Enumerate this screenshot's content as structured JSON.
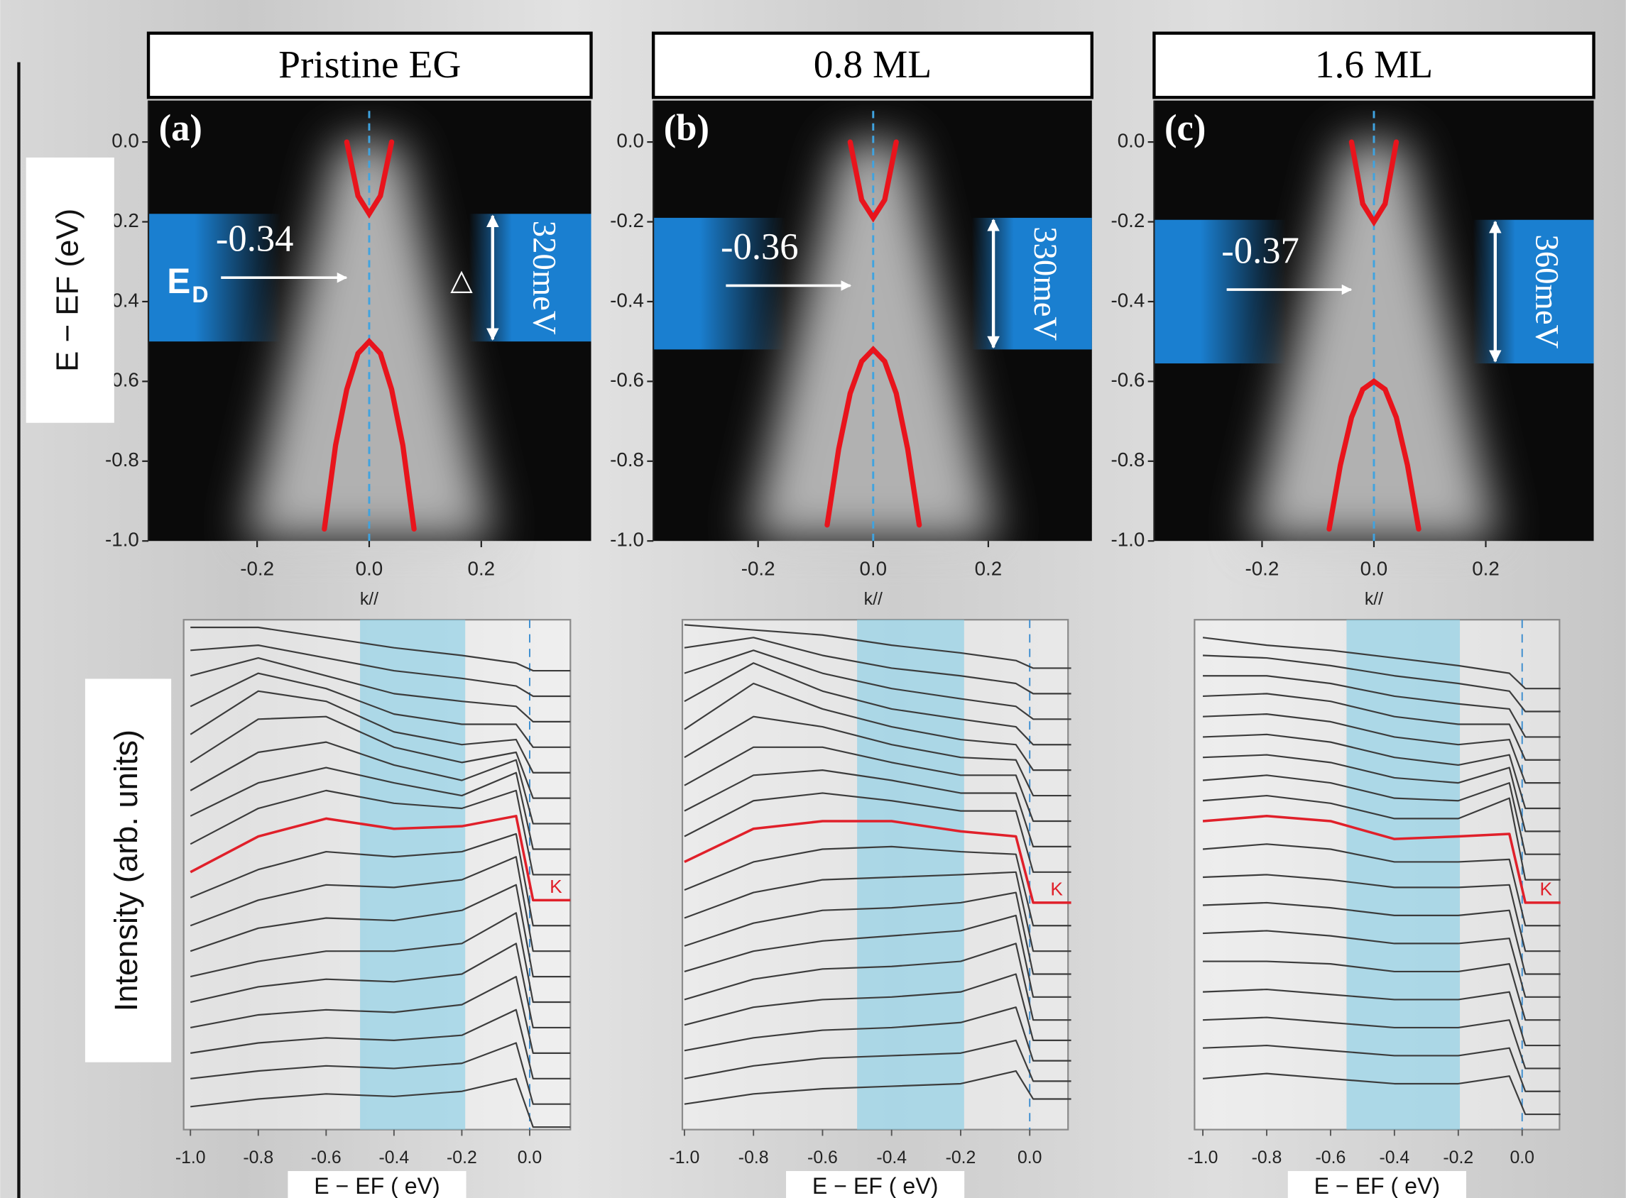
{
  "chart_data": [
    {
      "type": "band-map",
      "title": "Pristine EG",
      "panel_label": "(a)",
      "ylabel": "E − EF (eV)",
      "xlabel": "k//",
      "xlim": [
        -0.394,
        0.396
      ],
      "ylim": [
        -1.0,
        0.104
      ],
      "xticks": [
        -0.2,
        {
          "value": 0,
          "label": "0.0"
        },
        0.2
      ],
      "yticks": [
        {
          "value": 0,
          "label": "0.0"
        },
        -0.2,
        -0.4,
        -0.6,
        -0.8,
        {
          "value": -1,
          "label": "-1.0"
        }
      ],
      "gap_band": [
        -0.18,
        -0.5
      ],
      "gap": 320,
      "gap_label": "320meV",
      "dirac_point": -0.34,
      "dirac_label": "E",
      "dirac_subscript": "D",
      "delta": "△",
      "ref_line": 0,
      "series": [
        {
          "color": "#e8141c",
          "x": [
            -0.04,
            -0.02,
            0,
            0.02,
            0.04
          ],
          "values": [
            0.0,
            -0.135,
            -0.18,
            -0.135,
            0.0
          ]
        },
        {
          "color": "#e8141c",
          "x": [
            -0.08,
            -0.06,
            -0.04,
            -0.02,
            0,
            0.02,
            0.04,
            0.06,
            0.08
          ],
          "values": [
            -0.97,
            -0.76,
            -0.62,
            -0.53,
            -0.5,
            -0.53,
            -0.62,
            -0.76,
            -0.97
          ]
        }
      ]
    },
    {
      "type": "band-map",
      "title": "0.8 ML",
      "panel_label": "(b)",
      "xlabel": "k//",
      "xlim": [
        -0.382,
        0.38
      ],
      "ylim": [
        -1.0,
        0.104
      ],
      "xticks": [
        -0.2,
        {
          "value": 0,
          "label": "0.0"
        },
        0.2
      ],
      "yticks": [
        {
          "value": 0,
          "label": "0.0"
        },
        -0.2,
        -0.4,
        -0.6,
        -0.8,
        {
          "value": -1,
          "label": "-1.0"
        }
      ],
      "gap_band": [
        -0.19,
        -0.52
      ],
      "gap": 330,
      "gap_label": "330meV",
      "dirac_point": -0.36,
      "ref_line": 0,
      "series": [
        {
          "color": "#e8141c",
          "x": [
            -0.04,
            -0.02,
            0,
            0.02,
            0.04
          ],
          "values": [
            0.0,
            -0.145,
            -0.19,
            -0.145,
            0.0
          ]
        },
        {
          "color": "#e8141c",
          "x": [
            -0.08,
            -0.06,
            -0.04,
            -0.02,
            0,
            0.02,
            0.04,
            0.06,
            0.08
          ],
          "values": [
            -0.96,
            -0.77,
            -0.63,
            -0.55,
            -0.52,
            -0.55,
            -0.63,
            -0.77,
            -0.96
          ]
        }
      ]
    },
    {
      "type": "band-map",
      "title": "1.6 ML",
      "panel_label": "(c)",
      "xlabel": "k//",
      "xlim": [
        -0.393,
        0.393
      ],
      "ylim": [
        -1.0,
        0.104
      ],
      "xticks": [
        -0.2,
        {
          "value": 0,
          "label": "0.0"
        },
        0.2
      ],
      "yticks": [
        {
          "value": 0,
          "label": "0.0"
        },
        -0.2,
        -0.4,
        -0.6,
        -0.8,
        {
          "value": -1,
          "label": "-1.0"
        }
      ],
      "gap_band": [
        -0.195,
        -0.555
      ],
      "gap": 360,
      "gap_label": "360meV",
      "dirac_point": -0.37,
      "ref_line": 0,
      "series": [
        {
          "color": "#e8141c",
          "x": [
            -0.04,
            -0.02,
            0,
            0.02,
            0.04
          ],
          "values": [
            0.0,
            -0.155,
            -0.2,
            -0.155,
            0.0
          ]
        },
        {
          "color": "#e8141c",
          "x": [
            -0.08,
            -0.06,
            -0.04,
            -0.02,
            0,
            0.02,
            0.04,
            0.06,
            0.08
          ],
          "values": [
            -0.97,
            -0.81,
            -0.69,
            -0.62,
            -0.6,
            -0.62,
            -0.69,
            -0.81,
            -0.97
          ]
        }
      ]
    },
    {
      "type": "edc",
      "ylabel": "Intensity (arb. units)",
      "xlabel": "E − EF ( eV)",
      "marker_label": "K",
      "xlim": [
        -1.02,
        0.12
      ],
      "ylim": [
        0,
        20
      ],
      "xticks": [
        {
          "value": -1,
          "label": "-1.0"
        },
        -0.8,
        -0.6,
        -0.4,
        -0.2,
        {
          "value": 0,
          "label": "0.0"
        }
      ],
      "shade": [
        -0.5,
        -0.19
      ],
      "ref_line": 0,
      "x": [
        -1.0,
        -0.8,
        -0.6,
        -0.4,
        -0.2,
        -0.04,
        0.01,
        0.12
      ],
      "series": [
        {
          "color": "#3c3c3c",
          "values": [
            19.7,
            19.7,
            19.3,
            18.9,
            18.6,
            18.3,
            18.0,
            18.0
          ]
        },
        {
          "color": "#3c3c3c",
          "values": [
            18.8,
            19.0,
            18.5,
            18.0,
            17.7,
            17.4,
            17.0,
            17.0
          ]
        },
        {
          "color": "#3c3c3c",
          "values": [
            17.8,
            18.5,
            17.8,
            17.1,
            16.8,
            16.6,
            16.0,
            16.0
          ]
        },
        {
          "color": "#3c3c3c",
          "values": [
            16.6,
            17.9,
            17.3,
            16.3,
            15.9,
            15.9,
            15.0,
            15.0
          ]
        },
        {
          "color": "#3c3c3c",
          "values": [
            15.5,
            17.2,
            16.8,
            15.6,
            15.1,
            15.3,
            14.0,
            14.0
          ]
        },
        {
          "color": "#3c3c3c",
          "values": [
            14.4,
            16.1,
            16.2,
            15.0,
            14.4,
            14.8,
            13.0,
            13.0
          ]
        },
        {
          "color": "#3c3c3c",
          "values": [
            13.3,
            14.8,
            15.2,
            14.3,
            13.7,
            14.5,
            12.0,
            12.0
          ]
        },
        {
          "color": "#3c3c3c",
          "values": [
            12.3,
            13.6,
            14.2,
            13.6,
            13.1,
            14.0,
            11.0,
            11.0
          ]
        },
        {
          "color": "#3c3c3c",
          "values": [
            11.2,
            12.6,
            13.3,
            12.8,
            12.6,
            13.3,
            10.0,
            10.0
          ]
        },
        {
          "color": "#e0202a",
          "values": [
            10.1,
            11.5,
            12.2,
            11.8,
            11.9,
            12.3,
            9.0,
            9.0
          ]
        },
        {
          "color": "#3c3c3c",
          "values": [
            9.1,
            10.2,
            10.9,
            10.7,
            10.9,
            11.6,
            8.0,
            8.0
          ]
        },
        {
          "color": "#3c3c3c",
          "values": [
            8.0,
            9.0,
            9.6,
            9.5,
            9.8,
            10.7,
            7.0,
            7.0
          ]
        },
        {
          "color": "#3c3c3c",
          "values": [
            7.0,
            7.9,
            8.3,
            8.2,
            8.6,
            9.6,
            6.0,
            6.0
          ]
        },
        {
          "color": "#3c3c3c",
          "values": [
            6.0,
            6.6,
            7.0,
            7.0,
            7.3,
            8.5,
            5.0,
            5.0
          ]
        },
        {
          "color": "#3c3c3c",
          "values": [
            5.0,
            5.6,
            5.9,
            5.8,
            6.1,
            7.3,
            4.0,
            4.0
          ]
        },
        {
          "color": "#3c3c3c",
          "values": [
            4.0,
            4.5,
            4.7,
            4.6,
            4.9,
            6.0,
            3.0,
            3.0
          ]
        },
        {
          "color": "#3c3c3c",
          "values": [
            3.0,
            3.4,
            3.6,
            3.5,
            3.7,
            4.7,
            2.0,
            2.0
          ]
        },
        {
          "color": "#3c3c3c",
          "values": [
            2.0,
            2.3,
            2.5,
            2.4,
            2.6,
            3.4,
            1.0,
            1.0
          ]
        },
        {
          "color": "#3c3c3c",
          "values": [
            0.9,
            1.2,
            1.4,
            1.3,
            1.5,
            2.0,
            0.1,
            0.1
          ]
        }
      ]
    },
    {
      "type": "edc",
      "xlabel": "E − EF ( eV)",
      "marker_label": "K",
      "xlim": [
        -1.006,
        0.111
      ],
      "ylim": [
        0,
        20
      ],
      "xticks": [
        {
          "value": -1,
          "label": "-1.0"
        },
        -0.8,
        -0.6,
        -0.4,
        -0.2,
        {
          "value": 0,
          "label": "0.0"
        }
      ],
      "shade": [
        -0.5,
        -0.19
      ],
      "ref_line": 0,
      "x": [
        -1.0,
        -0.8,
        -0.6,
        -0.4,
        -0.2,
        -0.04,
        0.01,
        0.12
      ],
      "series": [
        {
          "color": "#3c3c3c",
          "values": [
            19.8,
            19.6,
            19.4,
            19.0,
            18.7,
            18.4,
            18.1,
            18.1
          ]
        },
        {
          "color": "#3c3c3c",
          "values": [
            18.9,
            19.3,
            18.6,
            18.1,
            17.8,
            17.5,
            17.1,
            17.1
          ]
        },
        {
          "color": "#3c3c3c",
          "values": [
            17.9,
            18.8,
            17.9,
            17.3,
            16.9,
            16.6,
            16.1,
            16.1
          ]
        },
        {
          "color": "#3c3c3c",
          "values": [
            16.8,
            18.3,
            17.2,
            16.5,
            16.1,
            15.8,
            15.1,
            15.1
          ]
        },
        {
          "color": "#3c3c3c",
          "values": [
            15.7,
            17.5,
            16.5,
            15.8,
            15.3,
            15.1,
            14.1,
            14.1
          ]
        },
        {
          "color": "#3c3c3c",
          "values": [
            14.6,
            16.2,
            15.8,
            15.1,
            14.6,
            14.5,
            13.1,
            13.1
          ]
        },
        {
          "color": "#3c3c3c",
          "values": [
            13.5,
            15.0,
            15.0,
            14.4,
            13.9,
            13.9,
            12.1,
            12.1
          ]
        },
        {
          "color": "#3c3c3c",
          "values": [
            12.5,
            13.9,
            14.1,
            13.7,
            13.2,
            13.2,
            11.1,
            11.1
          ]
        },
        {
          "color": "#3c3c3c",
          "values": [
            11.5,
            12.9,
            13.2,
            12.9,
            12.5,
            12.5,
            10.1,
            10.1
          ]
        },
        {
          "color": "#e0202a",
          "values": [
            10.5,
            11.8,
            12.1,
            12.1,
            11.7,
            11.5,
            8.9,
            8.9
          ]
        },
        {
          "color": "#3c3c3c",
          "values": [
            9.4,
            10.5,
            11.0,
            11.1,
            10.9,
            10.8,
            8.0,
            8.0
          ]
        },
        {
          "color": "#3c3c3c",
          "values": [
            8.3,
            9.3,
            9.8,
            9.9,
            10.0,
            10.1,
            7.0,
            7.0
          ]
        },
        {
          "color": "#3c3c3c",
          "values": [
            7.2,
            8.1,
            8.6,
            8.7,
            8.9,
            9.3,
            6.1,
            6.1
          ]
        },
        {
          "color": "#3c3c3c",
          "values": [
            6.2,
            7.0,
            7.4,
            7.6,
            7.8,
            8.4,
            5.2,
            5.2
          ]
        },
        {
          "color": "#3c3c3c",
          "values": [
            5.1,
            5.9,
            6.3,
            6.4,
            6.6,
            7.3,
            4.3,
            4.3
          ]
        },
        {
          "color": "#3c3c3c",
          "values": [
            4.1,
            4.8,
            5.1,
            5.2,
            5.4,
            6.1,
            3.5,
            3.5
          ]
        },
        {
          "color": "#3c3c3c",
          "values": [
            3.1,
            3.6,
            3.9,
            4.0,
            4.2,
            4.8,
            2.7,
            2.7
          ]
        },
        {
          "color": "#3c3c3c",
          "values": [
            2.0,
            2.5,
            2.8,
            2.9,
            3.0,
            3.5,
            1.9,
            1.9
          ]
        },
        {
          "color": "#3c3c3c",
          "values": [
            1.0,
            1.4,
            1.6,
            1.7,
            1.8,
            2.3,
            1.2,
            1.2
          ]
        }
      ]
    },
    {
      "type": "edc",
      "xlabel": "E − EF ( eV)",
      "marker_label": "K",
      "xlim": [
        -1.026,
        0.117
      ],
      "ylim": [
        0,
        20
      ],
      "xticks": [
        {
          "value": -1,
          "label": "-1.0"
        },
        -0.8,
        -0.6,
        -0.4,
        -0.2,
        {
          "value": 0,
          "label": "0.0"
        }
      ],
      "shade": [
        -0.55,
        -0.195
      ],
      "ref_line": 0,
      "x": [
        -1.0,
        -0.8,
        -0.6,
        -0.4,
        -0.2,
        -0.04,
        0.01,
        0.12
      ],
      "series": [
        {
          "color": "#3c3c3c",
          "values": [
            19.3,
            19.0,
            18.8,
            18.5,
            18.2,
            17.9,
            17.3,
            17.3
          ]
        },
        {
          "color": "#3c3c3c",
          "values": [
            18.6,
            18.5,
            18.2,
            17.8,
            17.5,
            17.2,
            16.4,
            16.4
          ]
        },
        {
          "color": "#3c3c3c",
          "values": [
            17.8,
            17.8,
            17.5,
            17.0,
            16.7,
            16.5,
            15.4,
            15.4
          ]
        },
        {
          "color": "#3c3c3c",
          "values": [
            17.0,
            17.1,
            16.8,
            16.2,
            15.9,
            15.9,
            14.5,
            14.5
          ]
        },
        {
          "color": "#3c3c3c",
          "values": [
            16.2,
            16.3,
            16.0,
            15.4,
            15.1,
            15.3,
            13.6,
            13.6
          ]
        },
        {
          "color": "#3c3c3c",
          "values": [
            15.4,
            15.5,
            15.2,
            14.6,
            14.3,
            14.7,
            12.6,
            12.6
          ]
        },
        {
          "color": "#3c3c3c",
          "values": [
            14.6,
            14.7,
            14.4,
            13.8,
            13.6,
            14.2,
            11.7,
            11.7
          ]
        },
        {
          "color": "#3c3c3c",
          "values": [
            13.7,
            13.9,
            13.6,
            13.0,
            12.9,
            13.6,
            10.8,
            10.8
          ]
        },
        {
          "color": "#3c3c3c",
          "values": [
            12.9,
            13.1,
            12.8,
            12.2,
            12.2,
            13.0,
            9.8,
            9.8
          ]
        },
        {
          "color": "#e0202a",
          "values": [
            12.1,
            12.3,
            12.1,
            11.4,
            11.5,
            11.6,
            8.9,
            8.9
          ]
        },
        {
          "color": "#3c3c3c",
          "values": [
            11.0,
            11.2,
            11.0,
            10.5,
            10.5,
            10.6,
            8.0,
            8.0
          ]
        },
        {
          "color": "#3c3c3c",
          "values": [
            9.9,
            10.0,
            9.8,
            9.5,
            9.5,
            9.6,
            7.0,
            7.0
          ]
        },
        {
          "color": "#3c3c3c",
          "values": [
            8.8,
            8.9,
            8.7,
            8.4,
            8.4,
            8.6,
            6.1,
            6.1
          ]
        },
        {
          "color": "#3c3c3c",
          "values": [
            7.7,
            7.8,
            7.6,
            7.3,
            7.3,
            7.5,
            5.2,
            5.2
          ]
        },
        {
          "color": "#3c3c3c",
          "values": [
            6.6,
            6.6,
            6.5,
            6.2,
            6.2,
            6.5,
            4.3,
            4.3
          ]
        },
        {
          "color": "#3c3c3c",
          "values": [
            5.4,
            5.5,
            5.3,
            5.1,
            5.1,
            5.4,
            3.3,
            3.3
          ]
        },
        {
          "color": "#3c3c3c",
          "values": [
            4.3,
            4.4,
            4.2,
            4.0,
            4.0,
            4.3,
            2.4,
            2.4
          ]
        },
        {
          "color": "#3c3c3c",
          "values": [
            3.2,
            3.3,
            3.1,
            2.9,
            2.9,
            3.2,
            1.5,
            1.5
          ]
        },
        {
          "color": "#3c3c3c",
          "values": [
            2.0,
            2.2,
            2.0,
            1.8,
            1.8,
            2.1,
            0.6,
            0.6
          ]
        }
      ]
    }
  ]
}
